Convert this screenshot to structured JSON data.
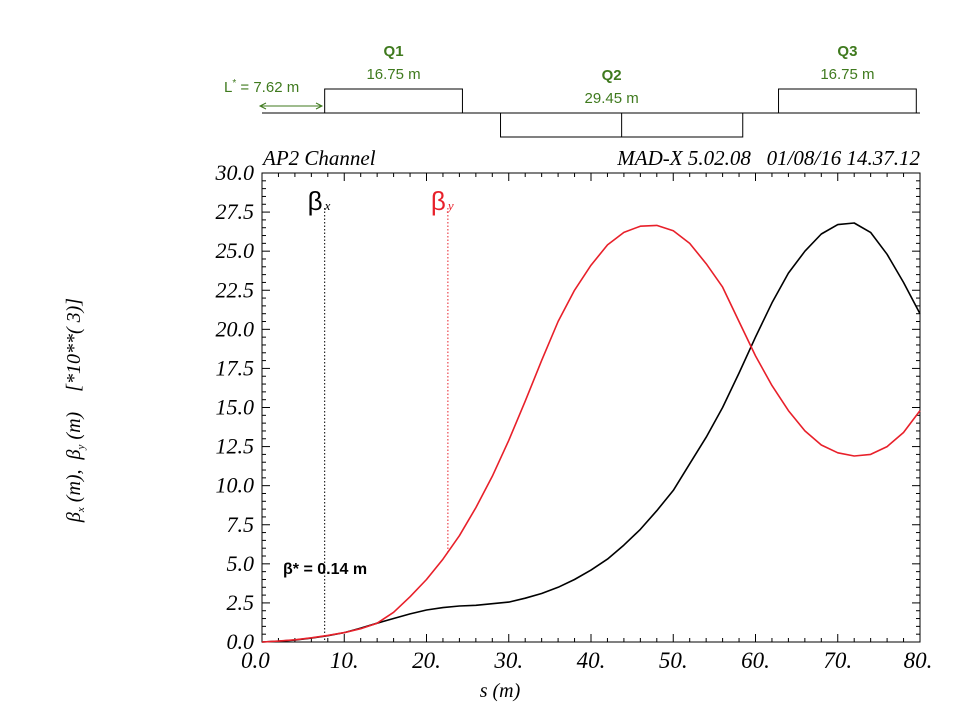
{
  "colors": {
    "beta_x": "#000000",
    "beta_y": "#e8202a",
    "magnet_label": "#3f7a1e",
    "frame": "#000000"
  },
  "lattice": {
    "lstar_label": "L",
    "lstar_superscript": "*",
    "lstar_value": " = 7.62 m",
    "magnets": [
      {
        "name": "Q1",
        "length": "16.75 m",
        "start_s": 7.62,
        "end_s": 24.37,
        "side": "top"
      },
      {
        "name": "Q2",
        "length": "29.45 m",
        "start_s": 29.0,
        "end_s": 58.45,
        "side": "bottom"
      },
      {
        "name": "Q3",
        "length": "16.75 m",
        "start_s": 62.8,
        "end_s": 79.55,
        "side": "top"
      }
    ]
  },
  "header": {
    "left": "AP2 Channel",
    "right": "MAD-X 5.02.08   01/08/16 14.37.12"
  },
  "annotation": {
    "beta_star": "β* = 0.14 m"
  },
  "ylabel_parts": {
    "bx": "β",
    "bx_sub": "x",
    "bx_unit": " (m),  ",
    "by": "β",
    "by_sub": "y",
    "by_unit": " (m)",
    "scale": "[*10**( 3)]"
  },
  "chart_data": {
    "type": "line",
    "title": "AP2 Channel",
    "xlabel": "s (m)",
    "ylabel": "βx (m), βy (m)   [*10**( 3)]",
    "xlim": [
      0,
      80
    ],
    "ylim": [
      0,
      30
    ],
    "x_ticks": [
      0,
      10,
      20,
      30,
      40,
      50,
      60,
      70,
      80
    ],
    "x_tick_labels": [
      "0.0",
      "10.",
      "20.",
      "30.",
      "40.",
      "50.",
      "60.",
      "70.",
      "80."
    ],
    "y_ticks": [
      0,
      2.5,
      5,
      7.5,
      10,
      12.5,
      15,
      17.5,
      20,
      22.5,
      25,
      27.5,
      30
    ],
    "y_tick_labels": [
      "0.0",
      "2.5",
      "5.0",
      "7.5",
      "10.0",
      "12.5",
      "15.0",
      "17.5",
      "20.0",
      "22.5",
      "25.0",
      "27.5",
      "30.0"
    ],
    "markers": [
      {
        "label": "βx",
        "s": 7.62,
        "series": "beta_x"
      },
      {
        "label": "βy",
        "s": 22.6,
        "series": "beta_y"
      }
    ],
    "series": [
      {
        "name": "βx",
        "color": "#000000",
        "x": [
          0,
          2,
          4,
          6,
          8,
          10,
          12,
          14,
          16,
          18,
          20,
          22,
          24,
          26,
          28,
          30,
          32,
          34,
          36,
          38,
          40,
          42,
          44,
          46,
          48,
          50,
          52,
          54,
          56,
          58,
          60,
          62,
          64,
          66,
          68,
          70,
          72,
          74,
          76,
          78,
          80
        ],
        "values": [
          0.0,
          0.05,
          0.12,
          0.25,
          0.4,
          0.6,
          0.88,
          1.2,
          1.5,
          1.8,
          2.05,
          2.2,
          2.3,
          2.35,
          2.45,
          2.55,
          2.8,
          3.1,
          3.5,
          4.0,
          4.6,
          5.3,
          6.2,
          7.2,
          8.4,
          9.7,
          11.4,
          13.1,
          15.0,
          17.2,
          19.5,
          21.7,
          23.6,
          25.0,
          26.1,
          26.7,
          26.8,
          26.2,
          24.8,
          23.0,
          21.0
        ]
      },
      {
        "name": "βy",
        "color": "#e8202a",
        "x": [
          0,
          2,
          4,
          6,
          8,
          10,
          12,
          14,
          16,
          18,
          20,
          22,
          24,
          26,
          28,
          30,
          32,
          34,
          36,
          38,
          40,
          42,
          44,
          46,
          48,
          50,
          52,
          54,
          56,
          58,
          60,
          62,
          64,
          66,
          68,
          70,
          72,
          74,
          76,
          78,
          80
        ],
        "values": [
          0.0,
          0.06,
          0.14,
          0.27,
          0.42,
          0.6,
          0.85,
          1.2,
          1.9,
          2.9,
          4.0,
          5.3,
          6.8,
          8.6,
          10.6,
          12.9,
          15.4,
          18.0,
          20.5,
          22.5,
          24.1,
          25.4,
          26.2,
          26.6,
          26.65,
          26.3,
          25.5,
          24.2,
          22.7,
          20.5,
          18.3,
          16.4,
          14.8,
          13.5,
          12.6,
          12.1,
          11.9,
          12.0,
          12.5,
          13.4,
          14.8
        ]
      }
    ]
  }
}
